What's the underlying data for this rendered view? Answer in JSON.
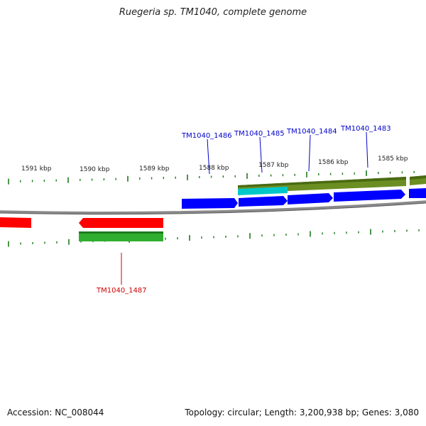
{
  "title": "Ruegeria sp. TM1040, complete genome",
  "footer": {
    "accession_label": "Accession: NC_008044",
    "topology_label": "Topology: circular; Length: 3,200,938 bp; Genes: 3,080"
  },
  "colors": {
    "forward_gene": "#0000ff",
    "reverse_gene": "#ff0000",
    "forward_label": "#0000cc",
    "reverse_label": "#cc0000",
    "olive_feature": "#6b8e23",
    "cyan_feature": "#00c8c8",
    "green_feature": "#2fae2f",
    "tick": "#1e7a1e",
    "backbone": "#8a8a8a"
  },
  "scale_labels": [
    {
      "text": "1591 kbp"
    },
    {
      "text": "1590 kbp"
    },
    {
      "text": "1589 kbp"
    },
    {
      "text": "1588 kbp"
    },
    {
      "text": "1587 kbp"
    },
    {
      "text": "1586 kbp"
    },
    {
      "text": "1585 kbp"
    }
  ],
  "gene_labels": [
    {
      "text": "TM1040_1486",
      "strand": "forward"
    },
    {
      "text": "TM1040_1485",
      "strand": "forward"
    },
    {
      "text": "TM1040_1484",
      "strand": "forward"
    },
    {
      "text": "TM1040_1483",
      "strand": "forward"
    },
    {
      "text": "TM1040_1487",
      "strand": "reverse"
    }
  ]
}
